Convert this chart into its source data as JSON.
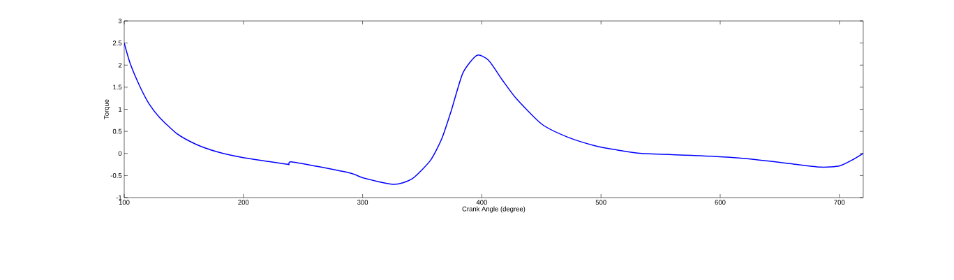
{
  "chart_data": {
    "type": "line",
    "xlabel": "Crank Angle (degree)",
    "ylabel": "Torque",
    "x": [
      100,
      105.1,
      112.9,
      120.7,
      129.5,
      144.1,
      160,
      177.6,
      199,
      235.8,
      238,
      240,
      261,
      290.4,
      300,
      325.7,
      341.2,
      356.8,
      366.5,
      374.4,
      384.1,
      395.8,
      405.6,
      417.3,
      429,
      450.5,
      472,
      495.4,
      511,
      534.4,
      583.2,
      622.3,
      661.3,
      684.7,
      700.3,
      712,
      720
    ],
    "series": [
      {
        "color": "#0000ff",
        "values": [
          2.5,
          2.03,
          1.53,
          1.13,
          0.82,
          0.45,
          0.21,
          0.04,
          -0.09,
          -0.24,
          -0.25,
          -0.19,
          -0.29,
          -0.45,
          -0.55,
          -0.7,
          -0.58,
          -0.16,
          0.34,
          0.97,
          1.82,
          2.22,
          2.11,
          1.66,
          1.24,
          0.66,
          0.37,
          0.17,
          0.09,
          0.0,
          -0.05,
          -0.12,
          -0.24,
          -0.31,
          -0.28,
          -0.13,
          0.0
        ]
      }
    ],
    "xlim": [
      100,
      720
    ],
    "ylim": [
      -1,
      3
    ],
    "xticks": [
      100,
      200,
      300,
      400,
      500,
      600,
      700
    ],
    "yticks": [
      -1,
      -0.5,
      0,
      0.5,
      1,
      1.5,
      2,
      2.5,
      3
    ],
    "marker": "none",
    "line_style": "solid"
  }
}
